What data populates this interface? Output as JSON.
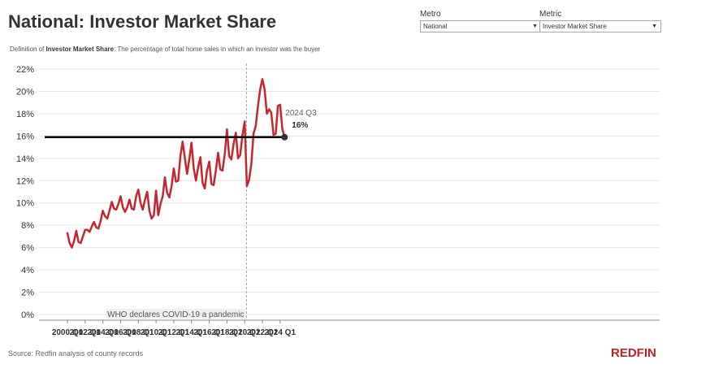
{
  "header": {
    "title": "National: Investor Market Share",
    "definition_label": "Definition of",
    "definition_term": "Investor Market Share",
    "definition_text": ": The percentage of total home sales in which an investor was the buyer"
  },
  "filters": {
    "metro": {
      "label": "Metro",
      "value": "National"
    },
    "metric": {
      "label": "Metric",
      "value": "Investor Market Share"
    }
  },
  "footer": {
    "source": "Source: Redfin analysis of county records",
    "logo": "REDFIN"
  },
  "colors": {
    "series": "#c8262c",
    "reference_line": "#000000",
    "covid_line": "#aaaaaa",
    "logo": "#c82021"
  },
  "chart_data": {
    "type": "line",
    "title": "National: Investor Market Share",
    "xlabel": "",
    "ylabel": "",
    "ylim": [
      0,
      22
    ],
    "yticks": [
      "0%",
      "2%",
      "4%",
      "6%",
      "8%",
      "10%",
      "12%",
      "14%",
      "16%",
      "18%",
      "20%",
      "22%"
    ],
    "xticks": [
      "2000 Q1",
      "2002 Q1",
      "2004 Q1",
      "2006 Q1",
      "2008 Q1",
      "2010 Q1",
      "2012 Q1",
      "2014 Q1",
      "2016 Q1",
      "2018 Q1",
      "2020 Q1",
      "2022 Q1",
      "2024 Q1"
    ],
    "grid": true,
    "reference_line": {
      "value": 15.9
    },
    "annotation": {
      "period": "2024 Q3",
      "value_label": "16%"
    },
    "covid_marker": {
      "period": "2020 Q2",
      "label": "WHO declares COVID-19 a pandemic"
    },
    "start_period": "2000 Q1",
    "series": [
      {
        "values": [
          7.3,
          6.4,
          6.0,
          6.6,
          7.5,
          6.5,
          6.4,
          7.0,
          7.6,
          7.6,
          7.4,
          7.9,
          8.3,
          7.8,
          7.7,
          8.4,
          9.3,
          8.8,
          8.6,
          9.3,
          10.1,
          9.5,
          9.4,
          9.9,
          10.6,
          9.6,
          9.2,
          9.6,
          10.3,
          9.5,
          9.4,
          10.6,
          11.2,
          10.0,
          9.4,
          10.3,
          11.0,
          9.3,
          8.6,
          8.9,
          11.1,
          8.9,
          9.9,
          10.6,
          12.3,
          10.9,
          10.5,
          11.5,
          13.1,
          11.9,
          12.0,
          14.2,
          15.5,
          14.0,
          12.6,
          13.9,
          15.4,
          13.1,
          12.0,
          13.2,
          14.1,
          11.8,
          11.3,
          12.9,
          13.7,
          11.7,
          11.6,
          12.9,
          14.5,
          13.0,
          12.9,
          14.4,
          16.6,
          14.2,
          13.9,
          15.3,
          16.3,
          14.0,
          14.3,
          16.1,
          17.3,
          11.5,
          12.1,
          13.5,
          16.2,
          16.9,
          18.7,
          20.2,
          21.1,
          20.2,
          18.0,
          18.4,
          18.1,
          16.1,
          16.2,
          18.7,
          18.8,
          16.6,
          15.9
        ]
      }
    ]
  }
}
